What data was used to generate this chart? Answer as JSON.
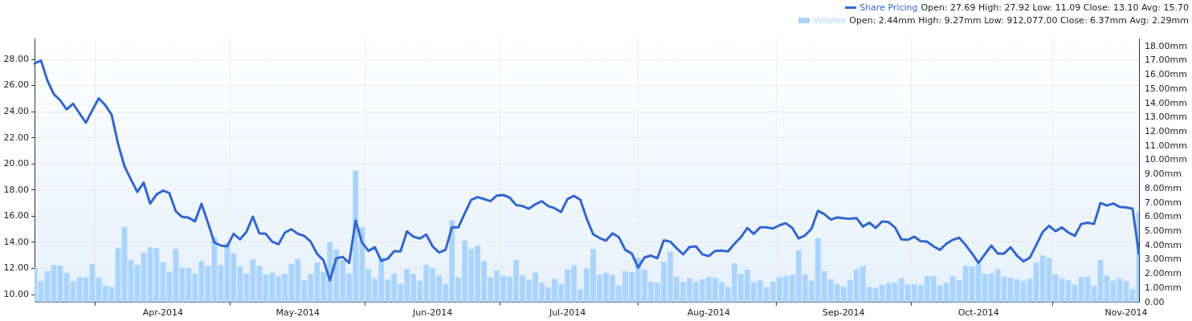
{
  "chart_data": {
    "type": "line",
    "categories": [
      null,
      null,
      null,
      null,
      null,
      null,
      null,
      null,
      null,
      null,
      null,
      null,
      null,
      null,
      null,
      null,
      null,
      null,
      null,
      null,
      "Apr-2014",
      null,
      null,
      null,
      null,
      null,
      null,
      null,
      null,
      null,
      null,
      null,
      null,
      null,
      null,
      null,
      null,
      null,
      null,
      null,
      null,
      "May-2014",
      null,
      null,
      null,
      null,
      null,
      null,
      null,
      null,
      null,
      null,
      null,
      null,
      null,
      null,
      null,
      null,
      null,
      null,
      null,
      null,
      "Jun-2014",
      null,
      null,
      null,
      null,
      null,
      null,
      null,
      null,
      null,
      null,
      null,
      null,
      null,
      null,
      null,
      null,
      null,
      null,
      null,
      null,
      "Jul-2014",
      null,
      null,
      null,
      null,
      null,
      null,
      null,
      null,
      null,
      null,
      null,
      null,
      null,
      null,
      null,
      null,
      null,
      null,
      null,
      null,
      null,
      "Aug-2014",
      null,
      null,
      null,
      null,
      null,
      null,
      null,
      null,
      null,
      null,
      null,
      null,
      null,
      null,
      null,
      null,
      null,
      null,
      null,
      null,
      "Sep-2014",
      null,
      null,
      null,
      null,
      null,
      null,
      null,
      null,
      null,
      null,
      null,
      null,
      null,
      null,
      null,
      null,
      null,
      null,
      null,
      null,
      "Oct-2014",
      null,
      null,
      null,
      null,
      null,
      null,
      null,
      null,
      null,
      null,
      null,
      null,
      null,
      null,
      null,
      null,
      null,
      null,
      null,
      null,
      null,
      null,
      "Nov-2014",
      null,
      null
    ],
    "series": [
      {
        "name": "Volume",
        "type": "bar",
        "axis": "y2",
        "color": "#aad4ff",
        "values": [
          2.44,
          1.48,
          2.22,
          2.63,
          2.59,
          2.07,
          1.48,
          1.78,
          1.76,
          2.7,
          1.74,
          1.19,
          1.09,
          3.81,
          5.3,
          2.96,
          2.63,
          3.5,
          3.89,
          3.83,
          2.81,
          2.15,
          3.74,
          2.44,
          2.41,
          2.04,
          2.91,
          2.54,
          4.57,
          2.63,
          4.17,
          3.44,
          2.54,
          2.02,
          3.02,
          2.59,
          1.96,
          2.07,
          1.85,
          2.02,
          2.69,
          3.06,
          1.54,
          2.0,
          2.8,
          2.15,
          4.24,
          3.7,
          3.0,
          2.04,
          9.27,
          5.28,
          2.35,
          1.69,
          3.15,
          1.59,
          2.04,
          1.31,
          2.36,
          2.02,
          1.52,
          2.65,
          2.43,
          1.91,
          1.3,
          5.78,
          1.74,
          4.35,
          3.76,
          4.0,
          2.91,
          1.76,
          2.24,
          1.87,
          1.81,
          2.98,
          1.91,
          1.61,
          2.09,
          1.39,
          1.07,
          1.67,
          1.3,
          2.31,
          2.61,
          0.91,
          2.38,
          3.74,
          1.93,
          2.07,
          1.94,
          1.2,
          2.19,
          2.13,
          3.13,
          2.3,
          1.46,
          1.39,
          2.85,
          3.57,
          1.81,
          1.46,
          1.69,
          1.46,
          1.63,
          1.8,
          1.72,
          1.41,
          1.07,
          2.72,
          2.0,
          2.3,
          1.43,
          1.56,
          1.07,
          1.47,
          1.76,
          1.87,
          1.94,
          3.67,
          1.96,
          1.52,
          4.52,
          2.19,
          1.61,
          1.3,
          1.11,
          1.57,
          2.33,
          2.56,
          1.07,
          1.04,
          1.24,
          1.35,
          1.39,
          1.69,
          1.26,
          1.26,
          1.22,
          1.85,
          1.85,
          1.19,
          1.37,
          1.85,
          1.57,
          2.59,
          2.52,
          2.72,
          2.0,
          2.04,
          2.33,
          1.81,
          1.74,
          1.59,
          1.5,
          1.67,
          2.8,
          3.3,
          3.13,
          1.96,
          1.67,
          1.56,
          1.24,
          1.78,
          1.8,
          1.15,
          2.98,
          1.89,
          1.52,
          1.7,
          1.5,
          0.94,
          6.37
        ]
      },
      {
        "name": "Share Pricing",
        "color": "#3366cc",
        "values": [
          27.69,
          27.92,
          26.39,
          25.34,
          24.87,
          24.17,
          24.61,
          23.87,
          23.16,
          24.11,
          25.02,
          24.51,
          23.77,
          21.55,
          19.83,
          18.83,
          17.86,
          18.56,
          16.97,
          17.66,
          17.96,
          17.76,
          16.37,
          15.94,
          15.88,
          15.6,
          16.95,
          15.5,
          13.99,
          13.75,
          13.69,
          14.65,
          14.23,
          14.8,
          15.96,
          14.69,
          14.65,
          14.05,
          13.85,
          14.75,
          15.0,
          14.65,
          14.49,
          14.05,
          13.12,
          12.62,
          11.09,
          12.78,
          12.88,
          12.42,
          15.66,
          13.99,
          13.34,
          13.62,
          12.58,
          12.74,
          13.32,
          13.3,
          14.84,
          14.43,
          14.29,
          14.59,
          13.69,
          13.22,
          13.42,
          15.14,
          15.14,
          16.21,
          17.25,
          17.46,
          17.31,
          17.15,
          17.58,
          17.62,
          17.42,
          16.85,
          16.77,
          16.57,
          16.91,
          17.15,
          16.77,
          16.61,
          16.31,
          17.31,
          17.56,
          17.25,
          15.8,
          14.61,
          14.33,
          14.13,
          14.69,
          14.39,
          13.42,
          13.14,
          12.07,
          12.84,
          12.98,
          12.78,
          14.15,
          14.05,
          13.54,
          13.08,
          13.64,
          13.69,
          13.08,
          12.94,
          13.34,
          13.36,
          13.3,
          13.89,
          14.39,
          15.1,
          14.65,
          15.14,
          15.14,
          15.06,
          15.3,
          15.46,
          15.1,
          14.29,
          14.53,
          15.04,
          16.41,
          16.15,
          15.74,
          15.9,
          15.84,
          15.8,
          15.86,
          15.2,
          15.5,
          15.1,
          15.6,
          15.54,
          15.14,
          14.23,
          14.19,
          14.43,
          14.09,
          14.05,
          13.69,
          13.42,
          13.89,
          14.19,
          14.35,
          13.79,
          13.14,
          12.42,
          13.08,
          13.75,
          13.14,
          13.14,
          13.62,
          12.98,
          12.54,
          12.82,
          13.79,
          14.79,
          15.26,
          14.85,
          15.14,
          14.75,
          14.49,
          15.4,
          15.5,
          15.4,
          17.01,
          16.81,
          16.97,
          16.71,
          16.67,
          16.57,
          13.1
        ]
      }
    ],
    "annotations": [
      "Open: 2.44mm High: 9.27mm Low: 912,077.00 Close: 6.37mm Avg: 2.29mm",
      "Open: 27.69 High: 27.92 Low: 11.09 Close: 13.10 Avg: 15.70"
    ],
    "ylim": [
      9.4,
      29.6
    ],
    "yticks": [
      {
        "value": 10,
        "label": "10.00"
      },
      {
        "value": 12,
        "label": "12.00"
      },
      {
        "value": 14,
        "label": "14.00"
      },
      {
        "value": 16,
        "label": "16.00"
      },
      {
        "value": 18,
        "label": "18.00"
      },
      {
        "value": 20,
        "label": "20.00"
      },
      {
        "value": 22,
        "label": "22.00"
      },
      {
        "value": 24,
        "label": "24.00"
      },
      {
        "value": 26,
        "label": "26.00"
      },
      {
        "value": 28,
        "label": "28.00"
      }
    ],
    "y2lim": [
      0,
      18.55
    ],
    "y2ticks": [
      {
        "value": 0,
        "label": "0.00"
      },
      {
        "value": 1,
        "label": "1.00mm"
      },
      {
        "value": 2,
        "label": "2.00mm"
      },
      {
        "value": 3,
        "label": "3.00mm"
      },
      {
        "value": 4,
        "label": "4.00mm"
      },
      {
        "value": 5,
        "label": "5.00mm"
      },
      {
        "value": 6,
        "label": "6.00mm"
      },
      {
        "value": 7,
        "label": "7.00mm"
      },
      {
        "value": 8,
        "label": "8.00mm"
      },
      {
        "value": 9,
        "label": "9.00mm"
      },
      {
        "value": 10,
        "label": "10.00mm"
      },
      {
        "value": 11,
        "label": "11.00mm"
      },
      {
        "value": 12,
        "label": "12.00mm"
      },
      {
        "value": 13,
        "label": "13.00mm"
      },
      {
        "value": 14,
        "label": "14.00mm"
      },
      {
        "value": 15,
        "label": "15.00mm"
      },
      {
        "value": 16,
        "label": "16.00mm"
      },
      {
        "value": 17,
        "label": "17.00mm"
      },
      {
        "value": 18,
        "label": "18.00mm"
      }
    ],
    "grid": true,
    "legend": "top right",
    "marker": "none",
    "line_style": "solid"
  }
}
